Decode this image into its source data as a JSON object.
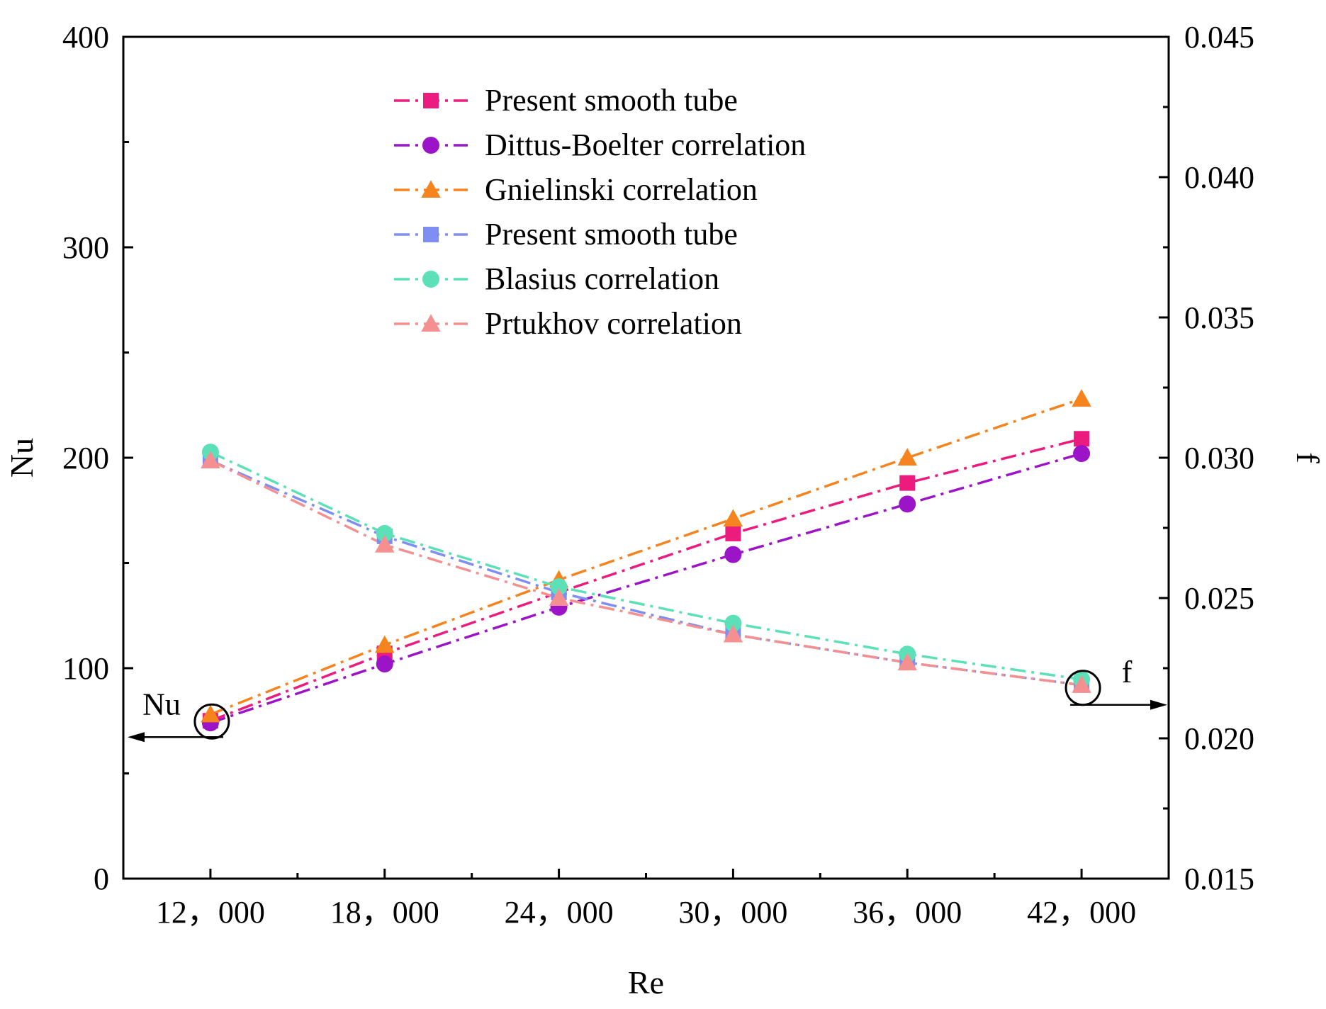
{
  "chart_data": {
    "type": "line",
    "xlabel": "Re",
    "ylabel_left": "Nu",
    "ylabel_right": "f",
    "x": [
      12000,
      18000,
      24000,
      30000,
      36000,
      42000
    ],
    "x_tick_labels": [
      "12，000",
      "18，000",
      "24，000",
      "30，000",
      "36，000",
      "42，000"
    ],
    "xlim": [
      9000,
      45000
    ],
    "ylim_left": [
      0,
      400
    ],
    "ylim_right": [
      0.015,
      0.045
    ],
    "y_ticks_left": [
      "0",
      "100",
      "200",
      "300",
      "400"
    ],
    "y_ticks_right": [
      "0.015",
      "0.020",
      "0.025",
      "0.030",
      "0.035",
      "0.040",
      "0.045"
    ],
    "series": [
      {
        "name": "Present smooth tube",
        "axis": "left",
        "marker": "square",
        "color": "#EC1C7F",
        "values": [
          75,
          107,
          136,
          164,
          188,
          209
        ]
      },
      {
        "name": "Dittus-Boelter correlation",
        "axis": "left",
        "marker": "circle",
        "color": "#9B14C8",
        "values": [
          74,
          102,
          129,
          154,
          178,
          202
        ]
      },
      {
        "name": "Gnielinski correlation",
        "axis": "left",
        "marker": "triangle",
        "color": "#F5841F",
        "values": [
          78,
          111,
          142,
          171,
          200,
          228
        ]
      },
      {
        "name": "Present smooth tube",
        "axis": "right",
        "marker": "square",
        "color": "#7F8EF2",
        "values": [
          0.0299,
          0.0272,
          0.0252,
          0.0237,
          0.0227,
          0.0219
        ]
      },
      {
        "name": "Blasius correlation",
        "axis": "right",
        "marker": "circle",
        "color": "#5CE0B8",
        "values": [
          0.0302,
          0.0273,
          0.0254,
          0.0241,
          0.023,
          0.0221
        ]
      },
      {
        "name": "Prtukhov correlation",
        "axis": "right",
        "marker": "triangle",
        "color": "#F59090",
        "values": [
          0.0299,
          0.0269,
          0.025,
          0.0237,
          0.0227,
          0.0219
        ]
      }
    ],
    "annotations": [
      {
        "text": "Nu",
        "points_to": "left"
      },
      {
        "text": "f",
        "points_to": "right"
      }
    ]
  }
}
